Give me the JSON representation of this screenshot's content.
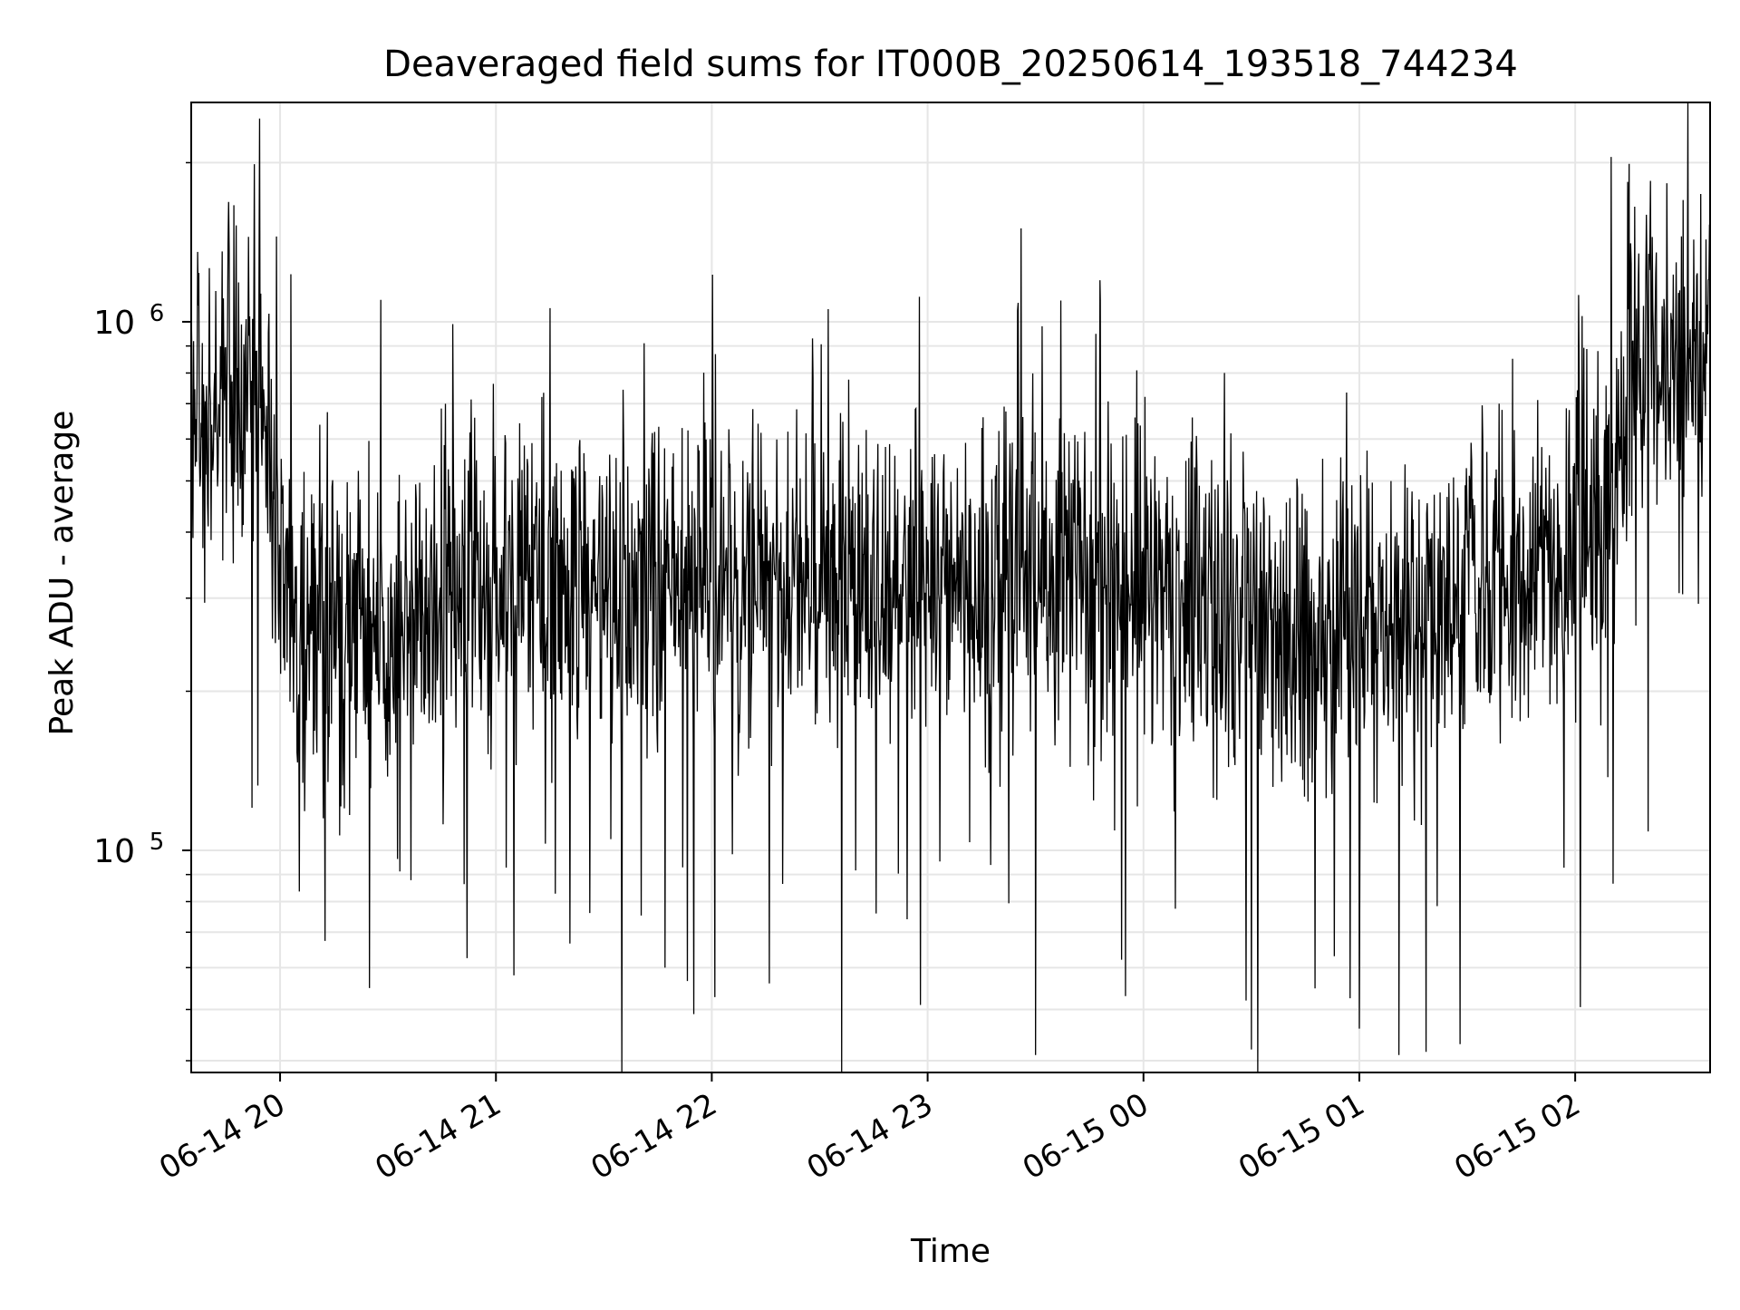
{
  "chart_data": {
    "type": "line",
    "title": "Deaveraged field sums for IT000B_20250614_193518_744234",
    "xlabel": "Time",
    "ylabel": "Peak ADU - average",
    "yscale": "log",
    "grid": true,
    "line_color": "#000000",
    "grid_color": "#e6e6e6",
    "x_range": [
      "2025-06-14 19:35:18",
      "2025-06-15 02:37:30"
    ],
    "ylim": [
      38000,
      2600000
    ],
    "x_ticks": [
      {
        "label": "06-14 20",
        "time": "2025-06-14 20:00"
      },
      {
        "label": "06-14 21",
        "time": "2025-06-14 21:00"
      },
      {
        "label": "06-14 22",
        "time": "2025-06-14 22:00"
      },
      {
        "label": "06-14 23",
        "time": "2025-06-14 23:00"
      },
      {
        "label": "06-15 00",
        "time": "2025-06-15 00:00"
      },
      {
        "label": "06-15 01",
        "time": "2025-06-15 01:00"
      },
      {
        "label": "06-15 02",
        "time": "2025-06-15 02:00"
      }
    ],
    "y_ticks": [
      {
        "value": 100000,
        "base": "10",
        "exp": "5"
      },
      {
        "value": 1000000,
        "base": "10",
        "exp": "6"
      }
    ],
    "series": [
      {
        "profile": {
          "times": [
            "2025-06-14 19:35:18",
            "2025-06-14 19:45",
            "2025-06-14 19:55",
            "2025-06-14 20:00",
            "2025-06-14 20:15",
            "2025-06-14 21:00",
            "2025-06-14 22:00",
            "2025-06-14 23:00",
            "2025-06-15 00:00",
            "2025-06-15 00:40",
            "2025-06-15 01:00",
            "2025-06-15 01:30",
            "2025-06-15 02:00",
            "2025-06-15 02:10",
            "2025-06-15 02:15",
            "2025-06-15 02:37:30"
          ],
          "median": [
            650000,
            700000,
            750000,
            300000,
            260000,
            320000,
            330000,
            330000,
            320000,
            250000,
            260000,
            300000,
            380000,
            420000,
            850000,
            900000
          ]
        },
        "extremes": [
          {
            "time": "2025-06-14 19:59",
            "value": 1450000
          },
          {
            "time": "2025-06-14 20:03",
            "value": 1230000
          },
          {
            "time": "2025-06-14 20:28",
            "value": 1100000
          },
          {
            "time": "2025-06-14 20:48",
            "value": 990000
          },
          {
            "time": "2025-06-14 21:05",
            "value": 58000
          },
          {
            "time": "2025-06-14 21:35",
            "value": 36000
          },
          {
            "time": "2025-06-14 21:47",
            "value": 60000
          },
          {
            "time": "2025-06-14 21:55",
            "value": 49000
          },
          {
            "time": "2025-06-14 22:16",
            "value": 56000
          },
          {
            "time": "2025-06-14 22:28",
            "value": 930000
          },
          {
            "time": "2025-06-14 22:58",
            "value": 51000
          },
          {
            "time": "2025-06-14 23:30",
            "value": 41000
          },
          {
            "time": "2025-06-14 23:48",
            "value": 1100000
          },
          {
            "time": "2025-06-14 23:55",
            "value": 53000
          },
          {
            "time": "2025-06-15 00:30",
            "value": 42000
          },
          {
            "time": "2025-06-15 01:00",
            "value": 46000
          },
          {
            "time": "2025-06-15 01:11",
            "value": 41000
          },
          {
            "time": "2025-06-15 01:28",
            "value": 43000
          },
          {
            "time": "2025-06-15 02:10",
            "value": 2050000
          },
          {
            "time": "2025-06-15 02:15",
            "value": 1990000
          },
          {
            "time": "2025-06-15 02:30",
            "value": 1700000
          }
        ]
      }
    ]
  }
}
